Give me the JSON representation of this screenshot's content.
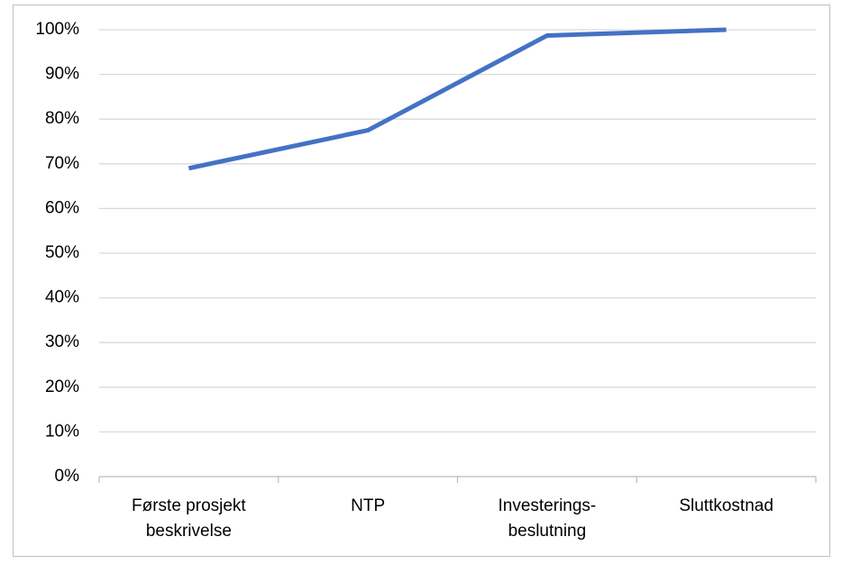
{
  "chart_data": {
    "type": "line",
    "categories": [
      "Første prosjekt\nbeskrivelse",
      "NTP",
      "Investerings-\nbeslutning",
      "Sluttkostnad"
    ],
    "series": [
      {
        "name": null,
        "color": "#4472c4",
        "values": [
          69,
          77.5,
          98.7,
          100
        ]
      }
    ],
    "ylim": [
      0,
      100
    ],
    "yticks": [
      {
        "value": 0,
        "label": "0%"
      },
      {
        "value": 10,
        "label": "10%"
      },
      {
        "value": 20,
        "label": "20%"
      },
      {
        "value": 30,
        "label": "30%"
      },
      {
        "value": 40,
        "label": "40%"
      },
      {
        "value": 50,
        "label": "50%"
      },
      {
        "value": 60,
        "label": "60%"
      },
      {
        "value": 70,
        "label": "70%"
      },
      {
        "value": 80,
        "label": "80%"
      },
      {
        "value": 90,
        "label": "90%"
      },
      {
        "value": 100,
        "label": "100%"
      }
    ],
    "grid": true
  }
}
